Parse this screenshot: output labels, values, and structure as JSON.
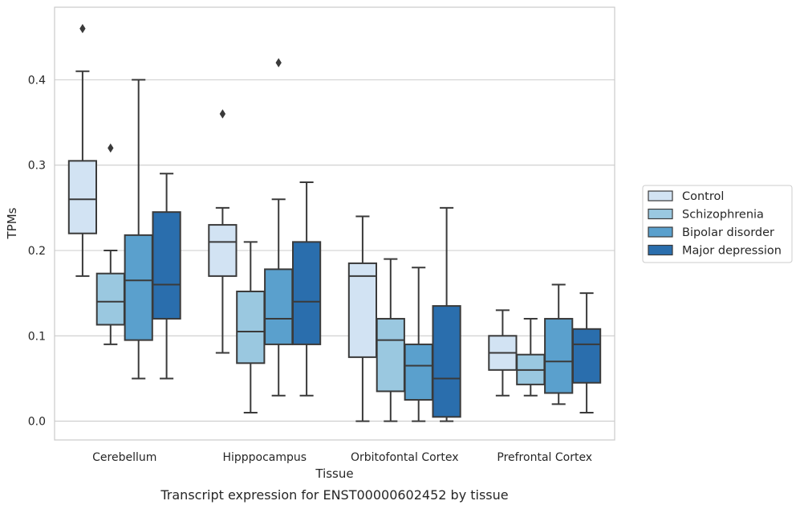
{
  "chart_data": {
    "type": "box",
    "title": "",
    "caption": "Transcript expression for ENST00000602452 by tissue",
    "xlabel": "Tissue",
    "ylabel": "TPMs",
    "ylim": [
      -0.022,
      0.485
    ],
    "yticks": [
      0.0,
      0.1,
      0.2,
      0.3,
      0.4
    ],
    "ytick_labels": [
      "0.0",
      "0.1",
      "0.2",
      "0.3",
      "0.4"
    ],
    "grid": "horizontal",
    "legend_position": "right",
    "categories": [
      "Cerebellum",
      "Hipppocampus",
      "Orbitofontal Cortex",
      "Prefrontal Cortex"
    ],
    "series": [
      {
        "name": "Control",
        "color": "#d2e3f3",
        "boxes": [
          {
            "whislo": 0.17,
            "q1": 0.22,
            "med": 0.26,
            "q3": 0.305,
            "whishi": 0.41,
            "fliers": [
              0.46
            ]
          },
          {
            "whislo": 0.08,
            "q1": 0.17,
            "med": 0.21,
            "q3": 0.23,
            "whishi": 0.25,
            "fliers": [
              0.36
            ]
          },
          {
            "whislo": 0.0,
            "q1": 0.075,
            "med": 0.17,
            "q3": 0.185,
            "whishi": 0.24,
            "fliers": []
          },
          {
            "whislo": 0.03,
            "q1": 0.06,
            "med": 0.08,
            "q3": 0.1,
            "whishi": 0.13,
            "fliers": []
          }
        ]
      },
      {
        "name": "Schizophrenia",
        "color": "#9ac8e0",
        "boxes": [
          {
            "whislo": 0.09,
            "q1": 0.113,
            "med": 0.14,
            "q3": 0.173,
            "whishi": 0.2,
            "fliers": [
              0.32
            ]
          },
          {
            "whislo": 0.01,
            "q1": 0.068,
            "med": 0.105,
            "q3": 0.152,
            "whishi": 0.21,
            "fliers": []
          },
          {
            "whislo": 0.0,
            "q1": 0.035,
            "med": 0.095,
            "q3": 0.12,
            "whishi": 0.19,
            "fliers": []
          },
          {
            "whislo": 0.03,
            "q1": 0.043,
            "med": 0.06,
            "q3": 0.078,
            "whishi": 0.12,
            "fliers": []
          }
        ]
      },
      {
        "name": "Bipolar disorder",
        "color": "#5aa0cd",
        "boxes": [
          {
            "whislo": 0.05,
            "q1": 0.095,
            "med": 0.165,
            "q3": 0.218,
            "whishi": 0.4,
            "fliers": []
          },
          {
            "whislo": 0.03,
            "q1": 0.09,
            "med": 0.12,
            "q3": 0.178,
            "whishi": 0.26,
            "fliers": [
              0.42
            ]
          },
          {
            "whislo": 0.0,
            "q1": 0.025,
            "med": 0.065,
            "q3": 0.09,
            "whishi": 0.18,
            "fliers": []
          },
          {
            "whislo": 0.02,
            "q1": 0.033,
            "med": 0.07,
            "q3": 0.12,
            "whishi": 0.16,
            "fliers": []
          }
        ]
      },
      {
        "name": "Major depression",
        "color": "#2a6ead",
        "boxes": [
          {
            "whislo": 0.05,
            "q1": 0.12,
            "med": 0.16,
            "q3": 0.245,
            "whishi": 0.29,
            "fliers": []
          },
          {
            "whislo": 0.03,
            "q1": 0.09,
            "med": 0.14,
            "q3": 0.21,
            "whishi": 0.28,
            "fliers": []
          },
          {
            "whislo": 0.0,
            "q1": 0.005,
            "med": 0.05,
            "q3": 0.135,
            "whishi": 0.25,
            "fliers": []
          },
          {
            "whislo": 0.01,
            "q1": 0.045,
            "med": 0.09,
            "q3": 0.108,
            "whishi": 0.15,
            "fliers": []
          }
        ]
      }
    ]
  }
}
